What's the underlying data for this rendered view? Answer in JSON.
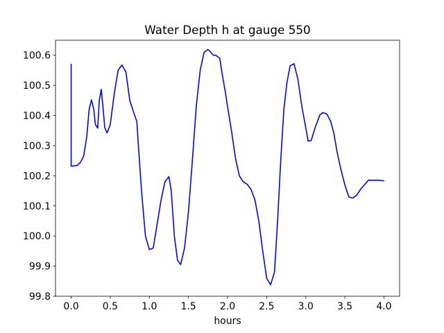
{
  "chart_data": {
    "type": "line",
    "title": "Water Depth h at gauge 550",
    "xlabel": "hours",
    "ylabel": "",
    "xlim": [
      -0.2,
      4.2
    ],
    "ylim": [
      99.8,
      100.65
    ],
    "grid": false,
    "x_ticks": [
      0.0,
      0.5,
      1.0,
      1.5,
      2.0,
      2.5,
      3.0,
      3.5,
      4.0
    ],
    "x_tick_labels": [
      "0.0",
      "0.5",
      "1.0",
      "1.5",
      "2.0",
      "2.5",
      "3.0",
      "3.5",
      "4.0"
    ],
    "y_ticks": [
      99.8,
      99.9,
      100.0,
      100.1,
      100.2,
      100.3,
      100.4,
      100.5,
      100.6
    ],
    "y_tick_labels": [
      "99.8",
      "99.9",
      "100.0",
      "100.1",
      "100.2",
      "100.3",
      "100.4",
      "100.5",
      "100.6"
    ],
    "line_color": "#0000ff",
    "series": [
      {
        "x": [
          0.0,
          0.0,
          0.02,
          0.08,
          0.12,
          0.16,
          0.2,
          0.23,
          0.26,
          0.29,
          0.31,
          0.34,
          0.36,
          0.385,
          0.41,
          0.43,
          0.46,
          0.5,
          0.55,
          0.6,
          0.65,
          0.7,
          0.75,
          0.8,
          0.84,
          0.86,
          0.9,
          0.95,
          1.0,
          1.05,
          1.1,
          1.15,
          1.2,
          1.25,
          1.28,
          1.32,
          1.36,
          1.4,
          1.45,
          1.5,
          1.55,
          1.6,
          1.65,
          1.7,
          1.75,
          1.78,
          1.82,
          1.85,
          1.9,
          1.93,
          1.97,
          2.0,
          2.05,
          2.1,
          2.15,
          2.2,
          2.25,
          2.3,
          2.35,
          2.4,
          2.45,
          2.5,
          2.55,
          2.6,
          2.64,
          2.68,
          2.72,
          2.76,
          2.8,
          2.85,
          2.9,
          2.95,
          3.0,
          3.03,
          3.07,
          3.12,
          3.18,
          3.22,
          3.27,
          3.32,
          3.36,
          3.4,
          3.45,
          3.5,
          3.55,
          3.6,
          3.65,
          3.7,
          3.75,
          3.8,
          3.85,
          3.9,
          3.95,
          4.0
        ],
        "y": [
          100.57,
          100.232,
          100.232,
          100.235,
          100.245,
          100.265,
          100.33,
          100.42,
          100.452,
          100.42,
          100.37,
          100.358,
          100.45,
          100.487,
          100.42,
          100.36,
          100.342,
          100.37,
          100.47,
          100.55,
          100.568,
          100.545,
          100.45,
          100.41,
          100.38,
          100.3,
          100.15,
          100.0,
          99.955,
          99.96,
          100.04,
          100.12,
          100.18,
          100.197,
          100.15,
          100.0,
          99.92,
          99.905,
          99.96,
          100.08,
          100.25,
          100.43,
          100.55,
          100.61,
          100.619,
          100.612,
          100.6,
          100.6,
          100.59,
          100.54,
          100.48,
          100.43,
          100.35,
          100.26,
          100.2,
          100.18,
          100.172,
          100.155,
          100.12,
          100.05,
          99.95,
          99.86,
          99.838,
          99.88,
          100.05,
          100.25,
          100.42,
          100.51,
          100.565,
          100.572,
          100.52,
          100.43,
          100.36,
          100.315,
          100.317,
          100.36,
          100.402,
          100.41,
          100.405,
          100.38,
          100.34,
          100.28,
          100.22,
          100.17,
          100.13,
          100.126,
          100.135,
          100.155,
          100.17,
          100.185,
          100.185,
          100.185,
          100.185,
          100.183
        ]
      }
    ]
  }
}
